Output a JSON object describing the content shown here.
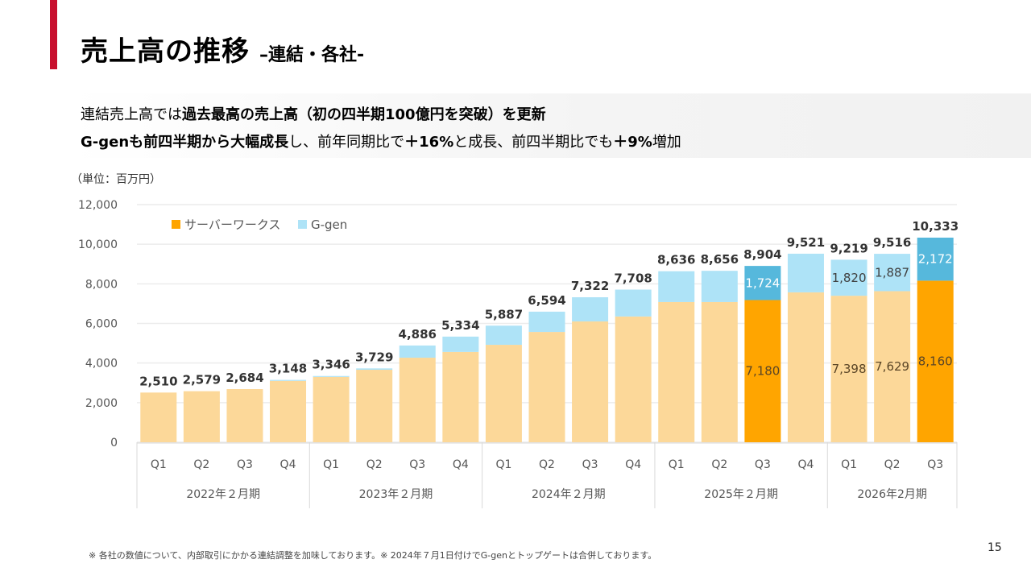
{
  "slide": {
    "title": "売上高の推移",
    "subtitle": "–連結・各社-",
    "summary": {
      "line1": [
        {
          "text": "連結売上高では",
          "bold": false
        },
        {
          "text": "過去最高の売上高（初の四半期100億円を突破）を更新",
          "bold": true
        }
      ],
      "line2": [
        {
          "text": "G-genも前四半期から大幅成長",
          "bold": true
        },
        {
          "text": "し、前年同期比で",
          "bold": false
        },
        {
          "text": "＋16%",
          "bold": true
        },
        {
          "text": "と成長、前四半期比でも",
          "bold": false
        },
        {
          "text": "＋9%",
          "bold": true
        },
        {
          "text": "増加",
          "bold": false
        }
      ]
    },
    "unit_label": "（単位：百万円）",
    "footnote": "※ 各社の数値について、内部取引にかかる連結調整を加味しております。※ 2024年７月1日付けでG-genとトップゲートは合併しております。",
    "page_number": "15",
    "colors": {
      "accent": "#c8102e",
      "serverworks_light": "#fcd899",
      "serverworks_highlight": "#ffa500",
      "ggen_light": "#aee3f7",
      "ggen_highlight": "#56b8dc"
    }
  },
  "chart_data": {
    "type": "bar",
    "stacked": true,
    "title": "",
    "xlabel": "",
    "ylabel": "百万円",
    "ylim": [
      0,
      12000
    ],
    "yticks": [
      0,
      2000,
      4000,
      6000,
      8000,
      10000,
      12000
    ],
    "ytick_labels": [
      "0",
      "2,000",
      "4,000",
      "6,000",
      "8,000",
      "10,000",
      "12,000"
    ],
    "grid": true,
    "legend_position": "top-left",
    "legend": [
      "サーバーワークス",
      "G-gen"
    ],
    "groups": [
      {
        "label": "2022年２月期",
        "quarters": [
          "Q1",
          "Q2",
          "Q3",
          "Q4"
        ]
      },
      {
        "label": "2023年２月期",
        "quarters": [
          "Q1",
          "Q2",
          "Q3",
          "Q4"
        ]
      },
      {
        "label": "2024年２月期",
        "quarters": [
          "Q1",
          "Q2",
          "Q3",
          "Q4"
        ]
      },
      {
        "label": "2025年２月期",
        "quarters": [
          "Q1",
          "Q2",
          "Q3",
          "Q4"
        ]
      },
      {
        "label": "2026年2月期",
        "quarters": [
          "Q1",
          "Q2",
          "Q3"
        ]
      }
    ],
    "categories": [
      "2022Q1",
      "2022Q2",
      "2022Q3",
      "2022Q4",
      "2023Q1",
      "2023Q2",
      "2023Q3",
      "2023Q4",
      "2024Q1",
      "2024Q2",
      "2024Q3",
      "2024Q4",
      "2025Q1",
      "2025Q2",
      "2025Q3",
      "2025Q4",
      "2026Q1",
      "2026Q2",
      "2026Q3"
    ],
    "totals": [
      2510,
      2579,
      2684,
      3148,
      3346,
      3729,
      4886,
      5334,
      5887,
      6594,
      7322,
      7708,
      8636,
      8656,
      8904,
      9521,
      9219,
      9516,
      10333
    ],
    "total_labels": [
      "2,510",
      "2,579",
      "2,684",
      "3,148",
      "3,346",
      "3,729",
      "4,886",
      "5,334",
      "5,887",
      "6,594",
      "7,322",
      "7,708",
      "8,636",
      "8,656",
      "8,904",
      "9,521",
      "9,219",
      "9,516",
      "10,333"
    ],
    "series": [
      {
        "name": "サーバーワークス",
        "values": [
          2510,
          2579,
          2684,
          3100,
          3300,
          3660,
          4270,
          4560,
          4920,
          5570,
          6100,
          6350,
          7080,
          7080,
          7180,
          7570,
          7398,
          7629,
          8160
        ],
        "labels": [
          null,
          null,
          null,
          null,
          null,
          null,
          null,
          null,
          null,
          null,
          null,
          null,
          null,
          null,
          "7,180",
          null,
          "7,398",
          "7,629",
          "8,160"
        ]
      },
      {
        "name": "G-gen",
        "values": [
          0,
          0,
          0,
          48,
          46,
          69,
          616,
          774,
          967,
          1024,
          1222,
          1358,
          1556,
          1576,
          1724,
          1951,
          1820,
          1887,
          2172
        ],
        "labels": [
          null,
          null,
          null,
          null,
          null,
          null,
          null,
          null,
          null,
          null,
          null,
          null,
          null,
          null,
          "1,724",
          null,
          "1,820",
          "1,887",
          "2,172"
        ]
      }
    ],
    "highlighted": [
      14,
      18
    ]
  }
}
